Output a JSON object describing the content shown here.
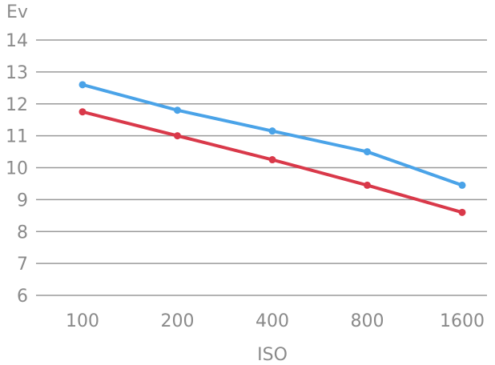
{
  "chart_data": {
    "type": "line",
    "xlabel": "ISO",
    "ylabel": "Ev",
    "categories": [
      "100",
      "200",
      "400",
      "800",
      "1600"
    ],
    "ylim": [
      6,
      14
    ],
    "yticks": [
      6,
      7,
      8,
      9,
      10,
      11,
      12,
      13,
      14
    ],
    "grid": true,
    "series": [
      {
        "color": "#4aa3e8",
        "values": [
          12.6,
          11.8,
          11.15,
          10.5,
          9.45
        ]
      },
      {
        "color": "#d9394a",
        "values": [
          11.75,
          11.0,
          10.25,
          9.45,
          8.6
        ]
      }
    ]
  }
}
